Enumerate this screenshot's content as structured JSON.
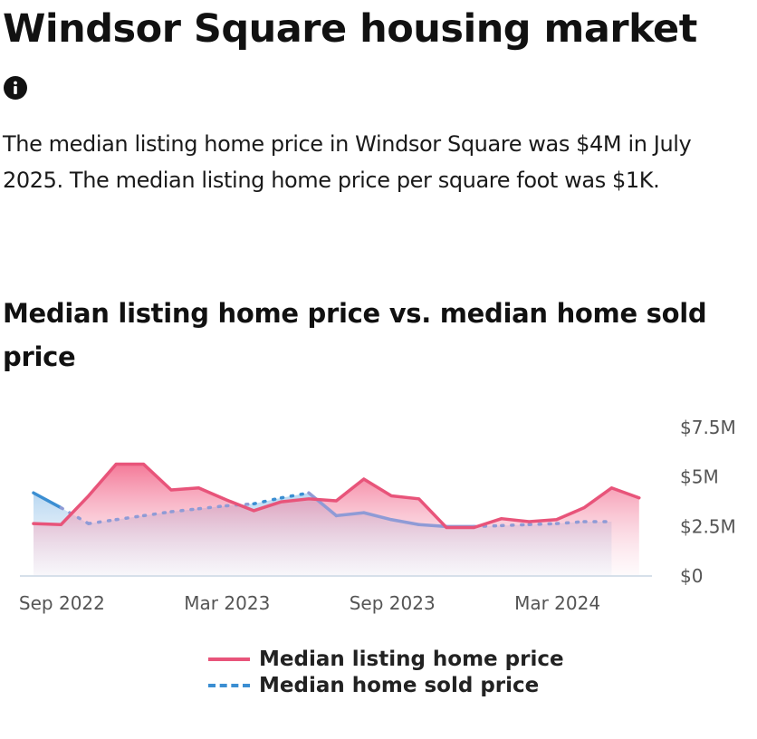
{
  "page": {
    "title": "Windsor Square housing market",
    "summary": "The median listing home price in Windsor Square was $4M in July 2025. The median listing home price per square foot was $1K.",
    "chart_title": "Median listing home price vs. median home sold price"
  },
  "icons": {
    "info": "info-icon"
  },
  "colors": {
    "listing": "#e8547a",
    "sold": "#3b8ed2",
    "sold_merged": "#8f9bd6",
    "axis": "#c9d6e4",
    "tick_text": "#555555"
  },
  "chart_data": {
    "type": "line",
    "title": "Median listing home price vs. median home sold price",
    "x": [
      "2022-08",
      "2022-09",
      "2022-10",
      "2022-11",
      "2022-12",
      "2023-01",
      "2023-02",
      "2023-03",
      "2023-04",
      "2023-05",
      "2023-06",
      "2023-07",
      "2023-08",
      "2023-09",
      "2023-10",
      "2023-11",
      "2023-12",
      "2024-01",
      "2024-02",
      "2024-03",
      "2024-04",
      "2024-05",
      "2024-06",
      "2024-07",
      "2024-08"
    ],
    "x_tick_labels": [
      {
        "label": "Sep 2022",
        "index": 1
      },
      {
        "label": "Mar 2023",
        "index": 7
      },
      {
        "label": "Sep 2023",
        "index": 13
      },
      {
        "label": "Mar 2024",
        "index": 19
      }
    ],
    "y_ticks": [
      {
        "label": "$0",
        "value": 0
      },
      {
        "label": "$2.5M",
        "value": 2.5
      },
      {
        "label": "$5M",
        "value": 5
      },
      {
        "label": "$7.5M",
        "value": 7.5
      }
    ],
    "ylim": [
      0,
      7.5
    ],
    "y_unit": "$M",
    "series": [
      {
        "name": "Median listing home price",
        "style": "solid",
        "values": [
          2.6,
          2.55,
          4.0,
          5.6,
          5.6,
          4.3,
          4.4,
          3.8,
          3.25,
          3.7,
          3.85,
          3.75,
          4.85,
          4.0,
          3.85,
          2.4,
          2.4,
          2.85,
          2.7,
          2.8,
          3.4,
          4.4,
          3.9,
          null,
          null
        ]
      },
      {
        "name": "Median home sold price",
        "style": "dashed",
        "values": [
          4.15,
          3.4,
          2.6,
          2.8,
          3.0,
          3.2,
          3.35,
          3.5,
          3.6,
          3.9,
          4.15,
          3.0,
          3.15,
          2.8,
          2.55,
          2.45,
          2.45,
          2.5,
          2.55,
          2.6,
          2.7,
          2.7,
          null,
          null,
          null
        ]
      }
    ],
    "legend_position": "bottom"
  }
}
